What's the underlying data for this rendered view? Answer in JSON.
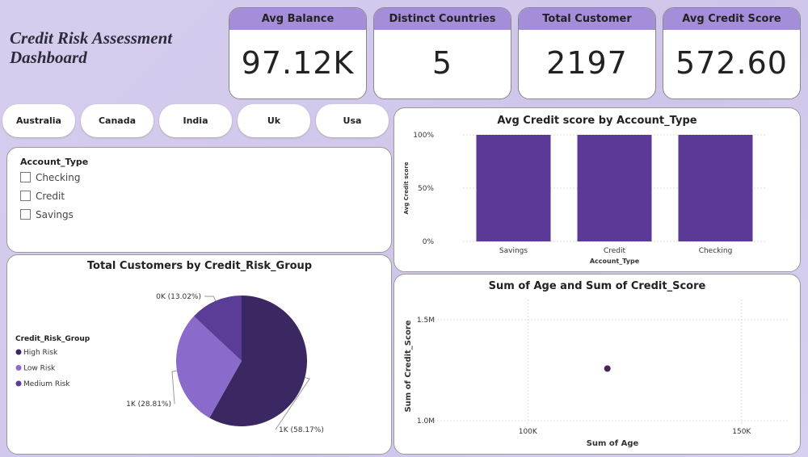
{
  "header": {
    "title": "Credit Risk Assessment Dashboard"
  },
  "cards": [
    {
      "label": "Avg Balance",
      "value": "97.12K"
    },
    {
      "label": "Distinct Countries",
      "value": "5"
    },
    {
      "label": "Total Customer",
      "value": "2197"
    },
    {
      "label": "Avg Credit Score",
      "value": "572.60"
    }
  ],
  "country_buttons": [
    "Australia",
    "Canada",
    "India",
    "Uk",
    "Usa"
  ],
  "account_type_filter": {
    "title": "Account_Type",
    "options": [
      "Checking",
      "Credit",
      "Savings"
    ]
  },
  "chart_data": [
    {
      "type": "bar",
      "title": "Avg Credit score by Account_Type",
      "x_label": "Account_Type",
      "y_label": "Avg Credit score",
      "categories": [
        "Savings",
        "Credit",
        "Checking"
      ],
      "values": [
        100,
        100,
        100
      ],
      "color": "#5a3a96",
      "ylim": [
        0,
        100
      ],
      "yticks": [
        {
          "value": 0,
          "label": "0%"
        },
        {
          "value": 50,
          "label": "50%"
        },
        {
          "value": 100,
          "label": "100%"
        }
      ],
      "grid": true
    },
    {
      "type": "pie",
      "title": "Total Customers by Credit_Risk_Group",
      "legend_title": "Credit_Risk_Group",
      "categories": [
        "High Risk",
        "Low Risk",
        "Medium Risk"
      ],
      "values": [
        58.17,
        28.81,
        13.02
      ],
      "value_labels": [
        "1K (58.17%)",
        "1K (28.81%)",
        "0K (13.02%)"
      ],
      "colors": [
        "#3b2761",
        "#8a6bcb",
        "#5b3d98"
      ],
      "legend": "left"
    },
    {
      "type": "scatter",
      "title": "Sum of Age and Sum of Credit_Score",
      "x_label": "Sum of Age",
      "y_label": "Sum of Credit_Score",
      "x": [
        118600
      ],
      "values": [
        1258000
      ],
      "color": "#4a2458",
      "xlim": [
        75000,
        161000
      ],
      "xticks": [
        {
          "value": 100000,
          "label": "100K"
        },
        {
          "value": 150000,
          "label": "150K"
        }
      ],
      "ylim": [
        980000,
        1600000
      ],
      "yticks": [
        {
          "value": 1000000,
          "label": "1.0M"
        },
        {
          "value": 1500000,
          "label": "1.5M"
        }
      ],
      "grid": true
    }
  ]
}
